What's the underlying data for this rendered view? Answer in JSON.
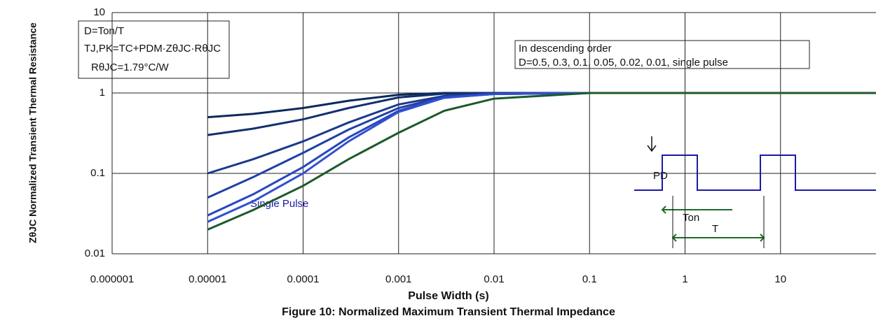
{
  "chart_data": {
    "type": "line",
    "title": "Figure 10: Normalized Maximum Transient Thermal Impedance",
    "x_label": "Pulse Width (s)",
    "y_label": "ZθJC Normalized Transient Thermal Resistance",
    "xscale": "log",
    "yscale": "log",
    "grid": true,
    "xlim": [
      1e-06,
      100
    ],
    "ylim": [
      0.01,
      10
    ],
    "xticks": [
      1e-06,
      1e-05,
      0.0001,
      0.001,
      0.01,
      0.1,
      1,
      10
    ],
    "yticks": [
      0.01,
      0.1,
      1,
      10
    ],
    "annotations": [
      "D=Ton/T",
      "TJ,PK=TC+PDM·ZθJC·RθJC",
      "RθJC=1.79°C/W",
      "In descending order",
      "D=0.5, 0.3, 0.1, 0.05, 0.02, 0.01, single pulse",
      "Single Pulse",
      "PD",
      "Ton",
      "T"
    ],
    "x": [
      1e-05,
      3e-05,
      0.0001,
      0.0003,
      0.001,
      0.003,
      0.01,
      0.1,
      1,
      10,
      100
    ],
    "series": [
      {
        "color": "#0b2a5a",
        "values": [
          0.5,
          0.55,
          0.65,
          0.8,
          0.95,
          1,
          1,
          1,
          1,
          1,
          1
        ]
      },
      {
        "color": "#12306e",
        "values": [
          0.3,
          0.36,
          0.47,
          0.65,
          0.88,
          0.98,
          1,
          1,
          1,
          1,
          1
        ]
      },
      {
        "color": "#1a3a8a",
        "values": [
          0.1,
          0.15,
          0.25,
          0.43,
          0.72,
          0.92,
          0.98,
          1,
          1,
          1,
          1
        ]
      },
      {
        "color": "#2040a8",
        "values": [
          0.05,
          0.09,
          0.18,
          0.35,
          0.65,
          0.9,
          0.97,
          1,
          1,
          1,
          1
        ]
      },
      {
        "color": "#2848c0",
        "values": [
          0.03,
          0.055,
          0.12,
          0.28,
          0.6,
          0.88,
          0.97,
          1,
          1,
          1,
          1
        ]
      },
      {
        "color": "#3050d0",
        "values": [
          0.025,
          0.045,
          0.1,
          0.25,
          0.58,
          0.87,
          0.97,
          1,
          1,
          1,
          1
        ]
      },
      {
        "color": "#1c5a2a",
        "values": [
          0.02,
          0.035,
          0.07,
          0.15,
          0.32,
          0.6,
          0.85,
          1,
          1,
          1,
          1
        ]
      }
    ]
  }
}
